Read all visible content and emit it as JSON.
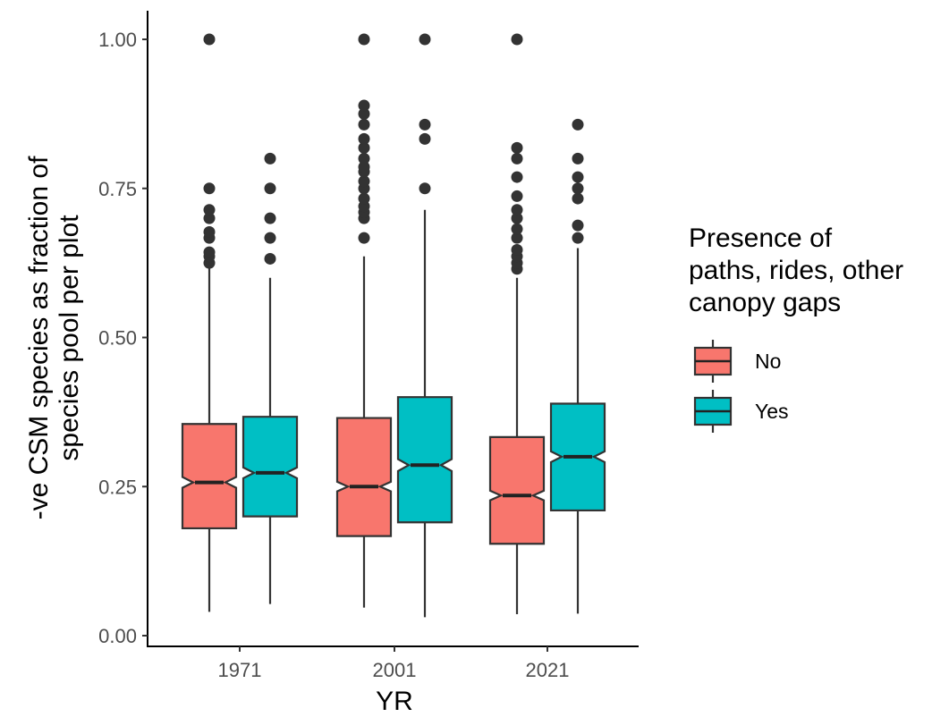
{
  "chart_data": {
    "type": "boxplot",
    "notched": true,
    "xlabel": "YR",
    "ylabel_lines": [
      "-ve CSM species as fraction of",
      "species pool per plot"
    ],
    "ylim": [
      0,
      1
    ],
    "yticks": [
      0,
      0.25,
      0.5,
      0.75,
      1
    ],
    "ytick_labels": [
      "0.00",
      "0.25",
      "0.50",
      "0.75",
      "1.00"
    ],
    "categories": [
      "1971",
      "2001",
      "2021"
    ],
    "grid": false,
    "legend": {
      "title_lines": [
        "Presence of",
        "paths, rides, other",
        "canopy gaps"
      ],
      "placement": "right"
    },
    "series": [
      {
        "name": "No",
        "color": "#F8766D",
        "boxes": [
          {
            "category": "1971",
            "min": 0.04,
            "q1": 0.18,
            "median": 0.257,
            "q3": 0.355,
            "max": 0.62,
            "notch_low": 0.248,
            "notch_high": 0.266,
            "outliers": [
              0.625,
              0.636,
              0.643,
              0.667,
              0.677,
              0.7,
              0.714,
              0.75,
              1.0
            ]
          },
          {
            "category": "2001",
            "min": 0.047,
            "q1": 0.167,
            "median": 0.25,
            "q3": 0.365,
            "max": 0.636,
            "notch_low": 0.242,
            "notch_high": 0.258,
            "outliers": [
              0.667,
              0.7,
              0.71,
              0.72,
              0.733,
              0.75,
              0.762,
              0.778,
              0.786,
              0.8,
              0.818,
              0.833,
              0.857,
              0.875,
              0.889,
              1.0
            ]
          },
          {
            "category": "2021",
            "min": 0.036,
            "q1": 0.154,
            "median": 0.235,
            "q3": 0.333,
            "max": 0.6,
            "notch_low": 0.227,
            "notch_high": 0.243,
            "outliers": [
              0.615,
              0.625,
              0.636,
              0.647,
              0.667,
              0.682,
              0.7,
              0.714,
              0.737,
              0.769,
              0.8,
              0.818,
              1.0
            ]
          }
        ]
      },
      {
        "name": "Yes",
        "color": "#00BFC4",
        "boxes": [
          {
            "category": "1971",
            "min": 0.053,
            "q1": 0.2,
            "median": 0.273,
            "q3": 0.367,
            "max": 0.6,
            "notch_low": 0.264,
            "notch_high": 0.282,
            "outliers": [
              0.632,
              0.667,
              0.7,
              0.75,
              0.8
            ]
          },
          {
            "category": "2001",
            "min": 0.031,
            "q1": 0.19,
            "median": 0.286,
            "q3": 0.4,
            "max": 0.714,
            "notch_low": 0.276,
            "notch_high": 0.296,
            "outliers": [
              0.75,
              0.833,
              0.857,
              1.0
            ]
          },
          {
            "category": "2021",
            "min": 0.037,
            "q1": 0.21,
            "median": 0.3,
            "q3": 0.389,
            "max": 0.65,
            "notch_low": 0.291,
            "notch_high": 0.309,
            "outliers": [
              0.667,
              0.688,
              0.733,
              0.75,
              0.769,
              0.8,
              0.857
            ]
          }
        ]
      }
    ]
  }
}
